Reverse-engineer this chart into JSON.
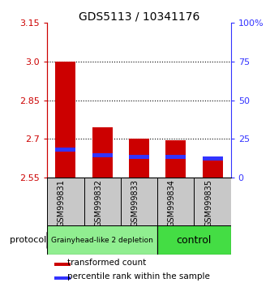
{
  "title": "GDS5113 / 10341176",
  "samples": [
    "GSM999831",
    "GSM999832",
    "GSM999833",
    "GSM999834",
    "GSM999835"
  ],
  "transformed_counts": [
    3.0,
    2.745,
    2.7,
    2.695,
    2.615
  ],
  "percentile_ranks_pct": [
    18.0,
    14.5,
    13.5,
    13.5,
    12.5
  ],
  "base_value": 2.55,
  "ylim_left": [
    2.55,
    3.15
  ],
  "ylim_right": [
    0,
    100
  ],
  "left_yticks": [
    2.55,
    2.7,
    2.85,
    3.0,
    3.15
  ],
  "right_yticks": [
    0,
    25,
    50,
    75,
    100
  ],
  "right_ytick_labels": [
    "0",
    "25",
    "50",
    "75",
    "100%"
  ],
  "dotted_lines": [
    3.0,
    2.85,
    2.7
  ],
  "bar_color_red": "#cc0000",
  "bar_color_blue": "#3333ff",
  "groups": [
    {
      "label": "Grainyhead-like 2 depletion",
      "indices": [
        0,
        1,
        2
      ],
      "color": "#90ee90",
      "text_size": 6.5
    },
    {
      "label": "control",
      "indices": [
        3,
        4
      ],
      "color": "#44dd44",
      "text_size": 9
    }
  ],
  "protocol_label": "protocol",
  "left_axis_color": "#cc0000",
  "right_axis_color": "#3333ff",
  "gray_box_color": "#c8c8c8",
  "figsize": [
    3.33,
    3.54
  ],
  "dpi": 100
}
